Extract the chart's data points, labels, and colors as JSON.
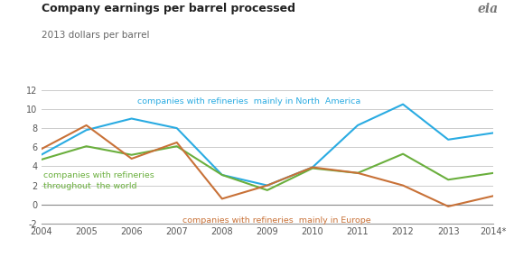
{
  "title": "Company earnings per barrel processed",
  "subtitle": "2013 dollars per barrel",
  "years": [
    2004,
    2005,
    2006,
    2007,
    2008,
    2009,
    2010,
    2011,
    2012,
    2013,
    2014
  ],
  "xlabels": [
    "2004",
    "2005",
    "2006",
    "2007",
    "2008",
    "2009",
    "2010",
    "2011",
    "2012",
    "2013",
    "2014*"
  ],
  "north_america": [
    5.2,
    7.8,
    9.0,
    8.0,
    3.1,
    2.0,
    3.9,
    8.3,
    10.5,
    6.8,
    7.5
  ],
  "worldwide": [
    4.7,
    6.1,
    5.2,
    6.1,
    3.1,
    1.5,
    3.8,
    3.3,
    5.3,
    2.6,
    3.3
  ],
  "europe": [
    5.8,
    8.3,
    4.8,
    6.5,
    0.6,
    2.0,
    3.9,
    3.3,
    2.0,
    -0.2,
    0.9
  ],
  "color_na": "#29ABE2",
  "color_world": "#6AAF3D",
  "color_europe": "#C87137",
  "ylim": [
    -2,
    12
  ],
  "yticks": [
    -2,
    0,
    2,
    4,
    6,
    8,
    10,
    12
  ],
  "bg_color": "#FFFFFF",
  "grid_color": "#CCCCCC"
}
